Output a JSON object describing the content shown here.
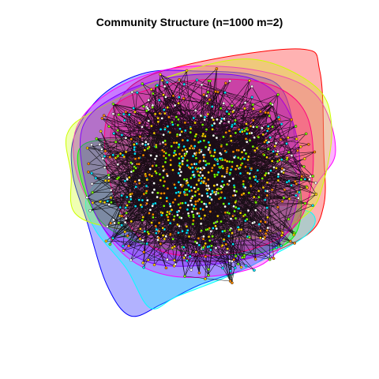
{
  "plot": {
    "title": "Community Structure (n=1000 m=2)"
  },
  "graph": {
    "node_count": 1000,
    "edges_per_new_node": 2,
    "edge_color": "#000000",
    "node_stroke": "#000000",
    "community_colors": [
      "#ff0000",
      "#ff00ff",
      "#0000ff",
      "#00ffff",
      "#ccff00",
      "#00ff00",
      "#8000ff",
      "#ff0080"
    ],
    "node_fill_colors": [
      "#ffd400",
      "#ff8c00",
      "#00e5ff",
      "#7dff00",
      "#ffffff"
    ]
  }
}
